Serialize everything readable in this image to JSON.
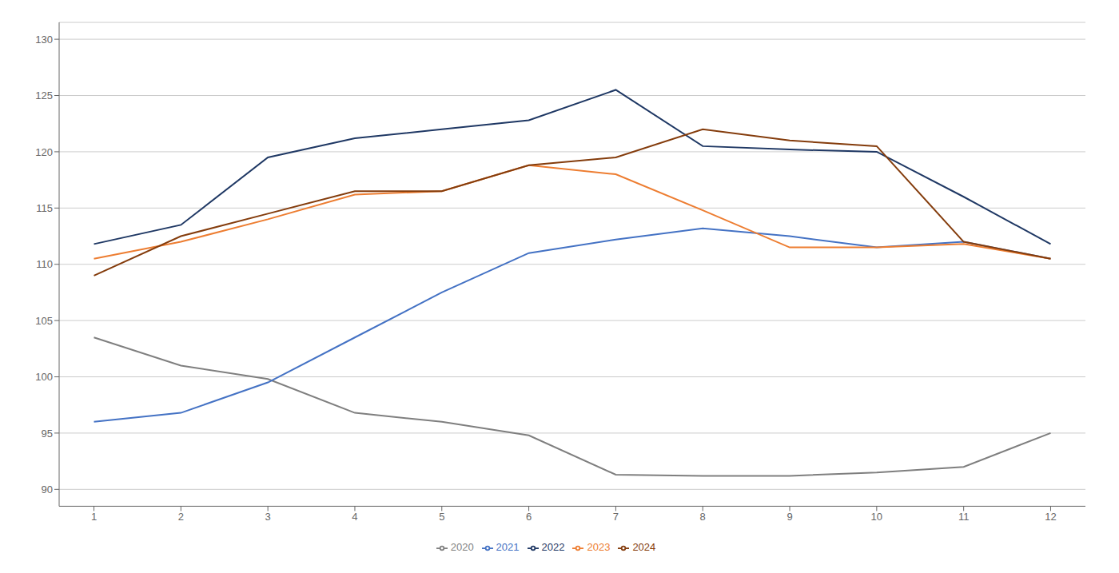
{
  "chart_data": {
    "type": "line",
    "x": [
      1,
      2,
      3,
      4,
      5,
      6,
      7,
      8,
      9,
      10,
      11,
      12
    ],
    "series": [
      {
        "name": "2020",
        "color": "#7f7f7f",
        "values": [
          103.5,
          101.0,
          99.8,
          96.8,
          96.0,
          94.8,
          91.3,
          91.2,
          91.2,
          91.5,
          92.0,
          95.0
        ]
      },
      {
        "name": "2021",
        "color": "#4472C4",
        "values": [
          96.0,
          96.8,
          99.5,
          103.5,
          107.5,
          111.0,
          112.2,
          113.2,
          112.5,
          111.5,
          112.0,
          110.5
        ]
      },
      {
        "name": "2022",
        "color": "#1F3864",
        "values": [
          111.8,
          113.5,
          119.5,
          121.2,
          122.0,
          122.8,
          125.5,
          120.5,
          120.2,
          120.0,
          116.0,
          111.8
        ]
      },
      {
        "name": "2023",
        "color": "#ED7D31",
        "values": [
          110.5,
          112.0,
          114.0,
          116.2,
          116.5,
          118.8,
          118.0,
          114.8,
          111.5,
          111.5,
          111.8,
          110.5
        ]
      },
      {
        "name": "2024",
        "color": "#843C0C",
        "values": [
          109.0,
          112.5,
          114.5,
          116.5,
          116.5,
          118.8,
          119.5,
          122.0,
          121.0,
          120.5,
          112.0,
          110.5
        ]
      }
    ],
    "xlim": [
      0.6,
      12.4
    ],
    "xticks": [
      1,
      2,
      3,
      4,
      5,
      6,
      7,
      8,
      9,
      10,
      11,
      12
    ],
    "ylim": [
      88.5,
      131.5
    ],
    "yticks": [
      90,
      95,
      100,
      105,
      110,
      115,
      120,
      125,
      130
    ],
    "grid": "y",
    "legend": "bottom"
  }
}
